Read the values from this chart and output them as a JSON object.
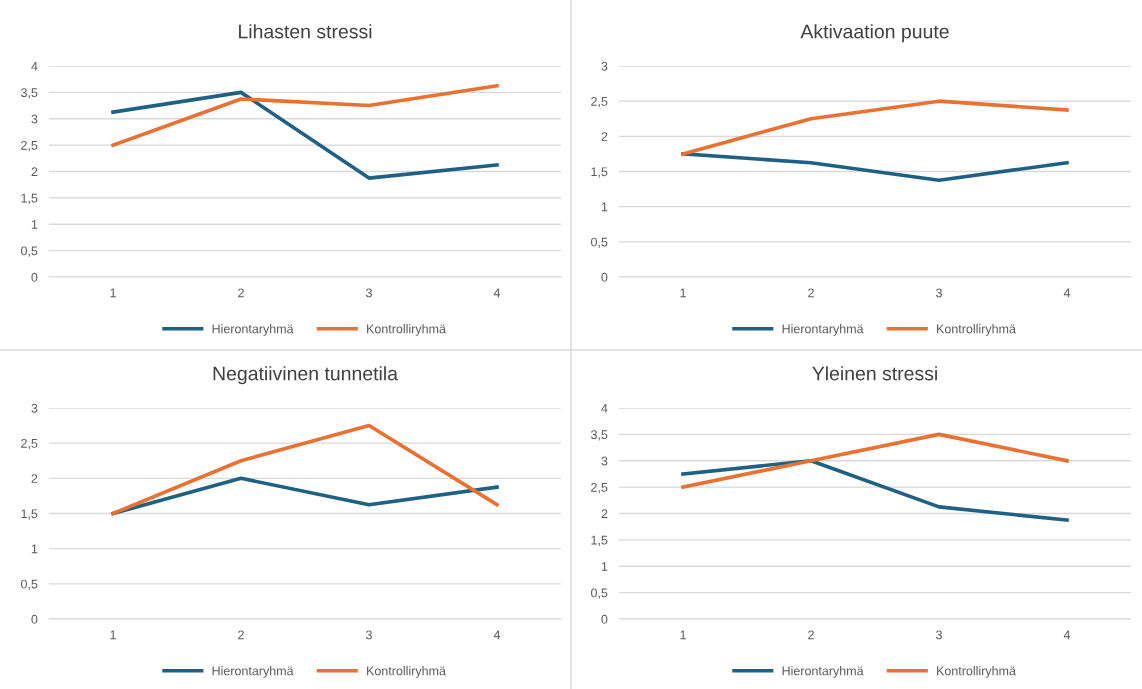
{
  "chart_data": [
    {
      "type": "line",
      "title": "Lihasten stressi",
      "categories": [
        "1",
        "2",
        "3",
        "4"
      ],
      "series": [
        {
          "name": "Hierontaryhmä",
          "color": "#1f6184",
          "values": [
            3.125,
            3.5,
            1.875,
            2.125
          ]
        },
        {
          "name": "Kontrolliryhmä",
          "color": "#e97132",
          "values": [
            2.5,
            3.375,
            3.25,
            3.625
          ]
        }
      ],
      "ylim": [
        0,
        4
      ],
      "yticks": [
        0,
        {
          "value": 0.5,
          "label": "0,5"
        },
        1,
        {
          "value": 1.5,
          "label": "1,5"
        },
        2,
        {
          "value": 2.5,
          "label": "2,5"
        },
        3,
        {
          "value": 3.5,
          "label": "3,5"
        },
        4
      ],
      "grid": "y",
      "legend": "bottom",
      "marker": "none",
      "line_style": "solid"
    },
    {
      "type": "line",
      "title": "Aktivaation puute",
      "categories": [
        "1",
        "2",
        "3",
        "4"
      ],
      "series": [
        {
          "name": "Hierontaryhmä",
          "color": "#1f6184",
          "values": [
            1.75,
            1.625,
            1.375,
            1.625
          ]
        },
        {
          "name": "Kontrolliryhmä",
          "color": "#e97132",
          "values": [
            1.75,
            2.25,
            2.5,
            2.375
          ]
        }
      ],
      "ylim": [
        0,
        3
      ],
      "yticks": [
        0,
        {
          "value": 0.5,
          "label": "0,5"
        },
        1,
        {
          "value": 1.5,
          "label": "1,5"
        },
        2,
        {
          "value": 2.5,
          "label": "2,5"
        },
        3
      ],
      "grid": "y",
      "legend": "bottom",
      "marker": "none",
      "line_style": "solid"
    },
    {
      "type": "line",
      "title": "Negatiivinen tunnetila",
      "categories": [
        "1",
        "2",
        "3",
        "4"
      ],
      "series": [
        {
          "name": "Hierontaryhmä",
          "color": "#1f6184",
          "values": [
            1.5,
            2,
            1.625,
            1.875
          ]
        },
        {
          "name": "Kontrolliryhmä",
          "color": "#e97132",
          "values": [
            1.5,
            2.25,
            2.75,
            1.625
          ]
        }
      ],
      "ylim": [
        0,
        3
      ],
      "yticks": [
        0,
        {
          "value": 0.5,
          "label": "0,5"
        },
        1,
        {
          "value": 1.5,
          "label": "1,5"
        },
        2,
        {
          "value": 2.5,
          "label": "2,5"
        },
        3
      ],
      "grid": "y",
      "legend": "bottom",
      "marker": "none",
      "line_style": "solid"
    },
    {
      "type": "line",
      "title": "Yleinen stressi",
      "categories": [
        "1",
        "2",
        "3",
        "4"
      ],
      "series": [
        {
          "name": "Hierontaryhmä",
          "color": "#1f6184",
          "values": [
            2.75,
            3,
            2.125,
            1.875
          ]
        },
        {
          "name": "Kontrolliryhmä",
          "color": "#e97132",
          "values": [
            2.5,
            3,
            3.5,
            3
          ]
        }
      ],
      "ylim": [
        0,
        4
      ],
      "yticks": [
        0,
        {
          "value": 0.5,
          "label": "0,5"
        },
        1,
        {
          "value": 1.5,
          "label": "1,5"
        },
        2,
        {
          "value": 2.5,
          "label": "2,5"
        },
        3,
        {
          "value": 3.5,
          "label": "3,5"
        },
        4
      ],
      "grid": "y",
      "legend": "bottom",
      "marker": "none",
      "line_style": "solid"
    }
  ]
}
